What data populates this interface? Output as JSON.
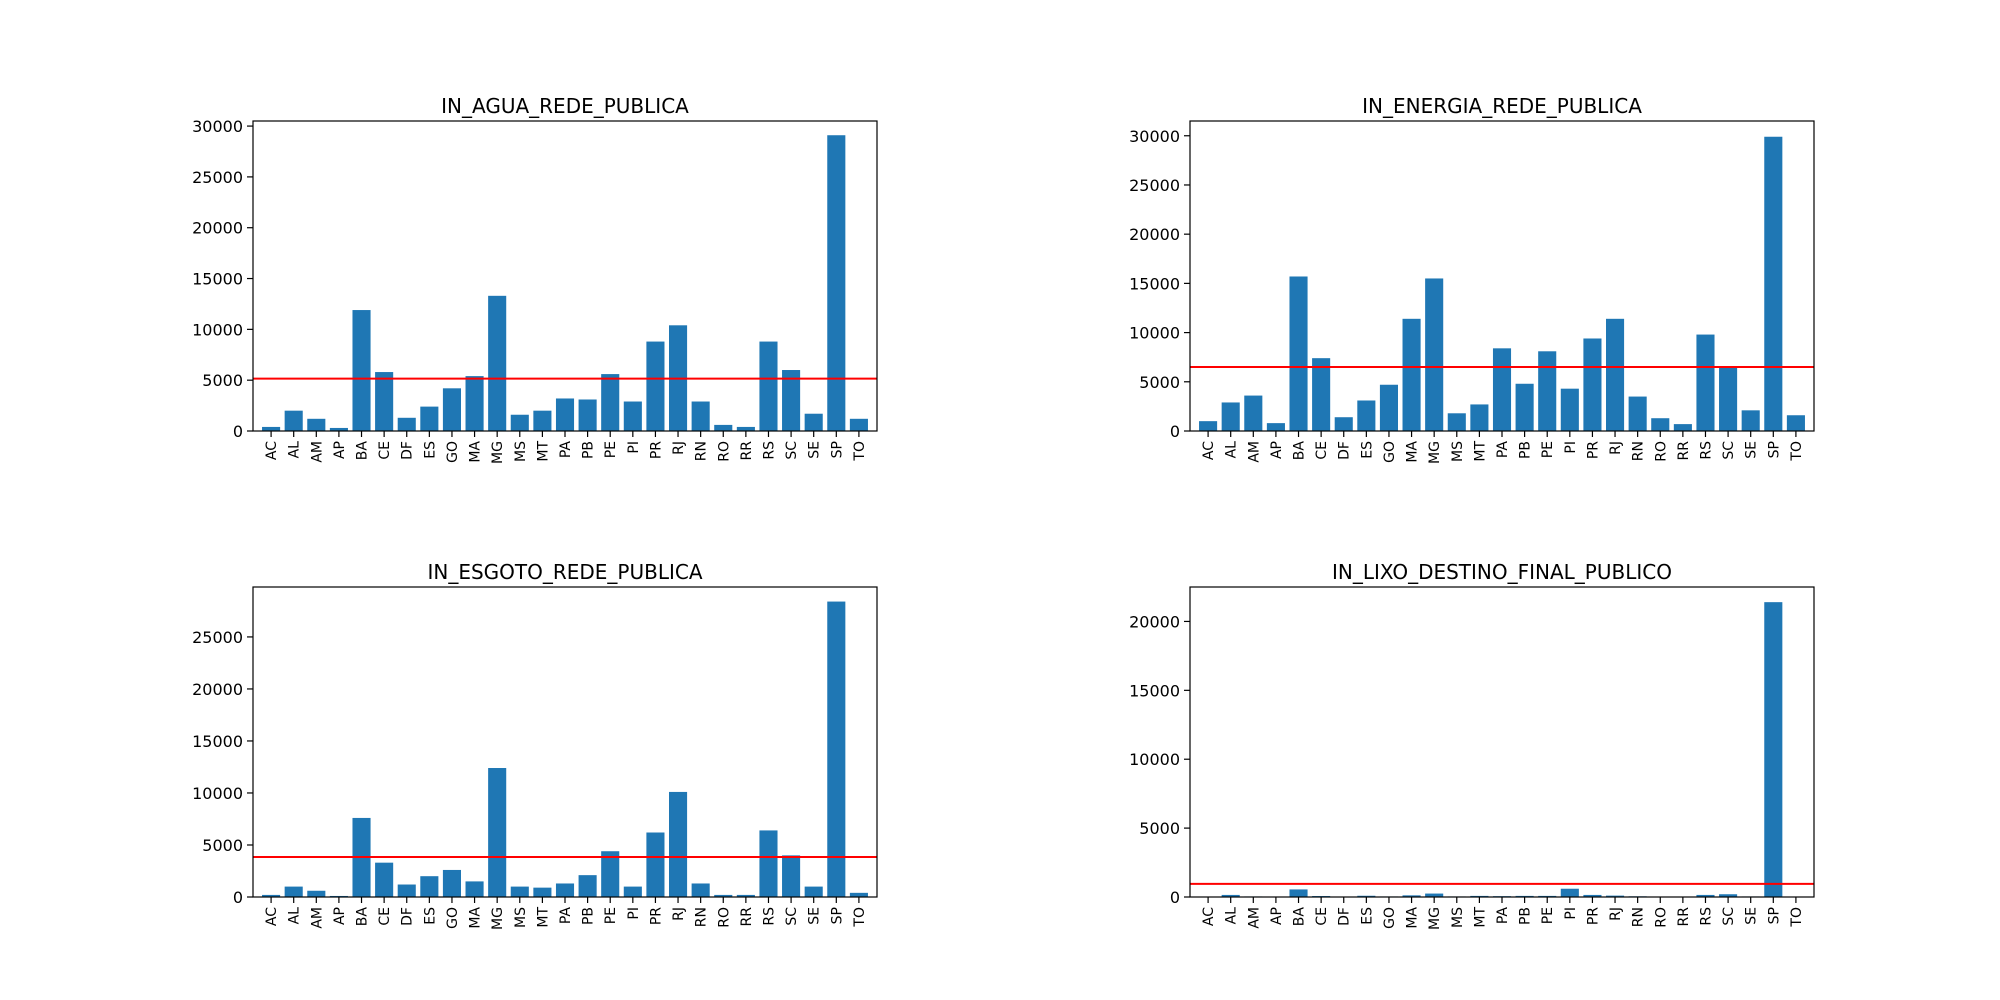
{
  "colors": {
    "bar": "#1f77b4",
    "reference_line": "#ff0000",
    "axes": "#000000",
    "background": "#ffffff"
  },
  "chart_data": [
    {
      "type": "bar",
      "title": "IN_AGUA_REDE_PUBLICA",
      "xlabel": "",
      "ylabel": "",
      "ylim": [
        0,
        30500
      ],
      "yticks": [
        0,
        5000,
        10000,
        15000,
        20000,
        25000,
        30000
      ],
      "ytick_labels": [
        "0",
        "5000",
        "10000",
        "15000",
        "20000",
        "25000",
        "30000"
      ],
      "categories": [
        "AC",
        "AL",
        "AM",
        "AP",
        "BA",
        "CE",
        "DF",
        "ES",
        "GO",
        "MA",
        "MG",
        "MS",
        "MT",
        "PA",
        "PB",
        "PE",
        "PI",
        "PR",
        "RJ",
        "RN",
        "RO",
        "RR",
        "RS",
        "SC",
        "SE",
        "SP",
        "TO"
      ],
      "values": [
        400,
        2000,
        1200,
        300,
        11900,
        5800,
        1300,
        2400,
        4200,
        5400,
        13300,
        1600,
        2000,
        3200,
        3100,
        5600,
        2900,
        8800,
        10400,
        2900,
        600,
        400,
        8800,
        6000,
        1700,
        29100,
        1200
      ],
      "reference_line": 5150,
      "grid": false,
      "legend": "none"
    },
    {
      "type": "bar",
      "title": "IN_ENERGIA_REDE_PUBLICA",
      "xlabel": "",
      "ylabel": "",
      "ylim": [
        0,
        31500
      ],
      "yticks": [
        0,
        5000,
        10000,
        15000,
        20000,
        25000,
        30000
      ],
      "ytick_labels": [
        "0",
        "5000",
        "10000",
        "15000",
        "20000",
        "25000",
        "30000"
      ],
      "categories": [
        "AC",
        "AL",
        "AM",
        "AP",
        "BA",
        "CE",
        "DF",
        "ES",
        "GO",
        "MA",
        "MG",
        "MS",
        "MT",
        "PA",
        "PB",
        "PE",
        "PI",
        "PR",
        "RJ",
        "RN",
        "RO",
        "RR",
        "RS",
        "SC",
        "SE",
        "SP",
        "TO"
      ],
      "values": [
        1000,
        2900,
        3600,
        800,
        15700,
        7400,
        1400,
        3100,
        4700,
        11400,
        15500,
        1800,
        2700,
        8400,
        4800,
        8100,
        4300,
        9400,
        11400,
        3500,
        1300,
        700,
        9800,
        6500,
        2100,
        29900,
        1600
      ],
      "reference_line": 6500,
      "grid": false,
      "legend": "none"
    },
    {
      "type": "bar",
      "title": "IN_ESGOTO_REDE_PUBLICA",
      "xlabel": "",
      "ylabel": "",
      "ylim": [
        0,
        29800
      ],
      "yticks": [
        0,
        5000,
        10000,
        15000,
        20000,
        25000
      ],
      "ytick_labels": [
        "0",
        "5000",
        "10000",
        "15000",
        "20000",
        "25000"
      ],
      "categories": [
        "AC",
        "AL",
        "AM",
        "AP",
        "BA",
        "CE",
        "DF",
        "ES",
        "GO",
        "MA",
        "MG",
        "MS",
        "MT",
        "PA",
        "PB",
        "PE",
        "PI",
        "PR",
        "RJ",
        "RN",
        "RO",
        "RR",
        "RS",
        "SC",
        "SE",
        "SP",
        "TO"
      ],
      "values": [
        200,
        1000,
        600,
        100,
        7600,
        3300,
        1200,
        2000,
        2600,
        1500,
        12400,
        1000,
        900,
        1300,
        2100,
        4400,
        1000,
        6200,
        10100,
        1300,
        200,
        200,
        6400,
        4000,
        1000,
        28400,
        400
      ],
      "reference_line": 3850,
      "grid": false,
      "legend": "none"
    },
    {
      "type": "bar",
      "title": "IN_LIXO_DESTINO_FINAL_PUBLICO",
      "xlabel": "",
      "ylabel": "",
      "ylim": [
        0,
        22500
      ],
      "yticks": [
        0,
        5000,
        10000,
        15000,
        20000
      ],
      "ytick_labels": [
        "0",
        "5000",
        "10000",
        "15000",
        "20000"
      ],
      "categories": [
        "AC",
        "AL",
        "AM",
        "AP",
        "BA",
        "CE",
        "DF",
        "ES",
        "GO",
        "MA",
        "MG",
        "MS",
        "MT",
        "PA",
        "PB",
        "PE",
        "PI",
        "PR",
        "RJ",
        "RN",
        "RO",
        "RR",
        "RS",
        "SC",
        "SE",
        "SP",
        "TO"
      ],
      "values": [
        20,
        150,
        40,
        20,
        550,
        70,
        30,
        90,
        40,
        120,
        250,
        40,
        80,
        60,
        80,
        80,
        600,
        150,
        100,
        50,
        20,
        20,
        150,
        200,
        40,
        21400,
        20
      ],
      "reference_line": 950,
      "grid": false,
      "legend": "none"
    }
  ]
}
